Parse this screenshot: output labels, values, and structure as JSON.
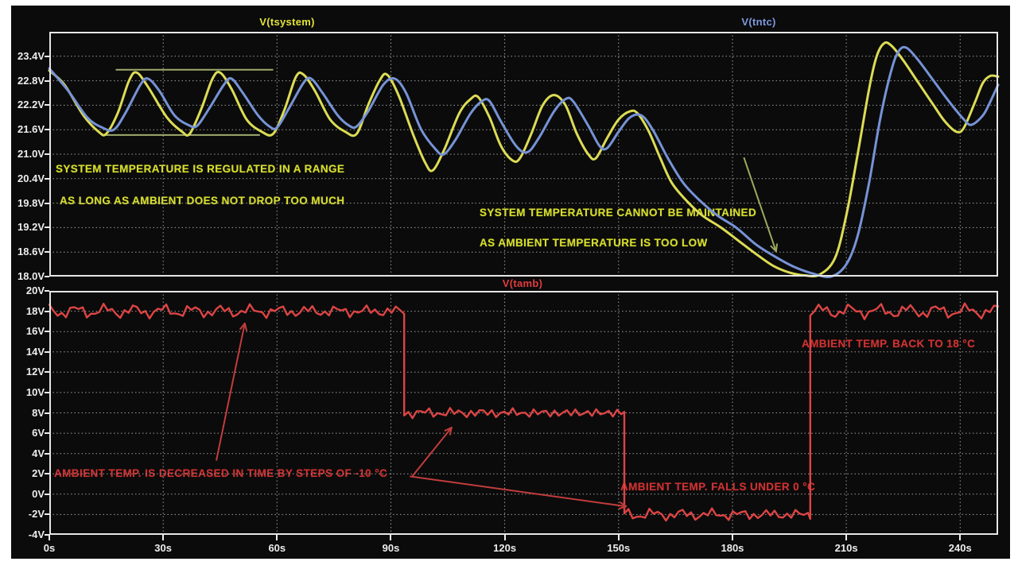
{
  "figure": {
    "background": "#0b0b0b",
    "grid_color": "#9c9c9c",
    "border_color": "#e6e6e6",
    "axis_label_color": "#ededed"
  },
  "chart_data": [
    {
      "id": "top",
      "type": "line",
      "xlim": [
        0,
        250
      ],
      "ylim": [
        18.0,
        24.0
      ],
      "grid_x": [
        30,
        60,
        90,
        120,
        150,
        180,
        210,
        240
      ],
      "grid_y": [
        23.4,
        22.8,
        22.2,
        21.6,
        21.0,
        20.4,
        19.8,
        19.2,
        18.6
      ],
      "yticks": [
        23.4,
        22.8,
        22.2,
        21.6,
        21.0,
        20.4,
        19.8,
        19.2,
        18.6,
        18.0
      ],
      "ytick_labels": [
        "23.4V",
        "22.8V",
        "22.2V",
        "21.6V",
        "21.0V",
        "20.4V",
        "19.8V",
        "19.2V",
        "18.6V",
        "18.0V"
      ],
      "x_axis": false,
      "legend": [
        {
          "label": "V(tsystem)",
          "color": "#e3e337"
        },
        {
          "label": "V(tntc)",
          "color": "#7d9ae0"
        }
      ],
      "annotations": [
        {
          "text": "SYSTEM TEMPERATURE IS REGULATED IN A RANGE"
        },
        {
          "text": "AS LONG AS AMBIENT DOES NOT DROP TOO MUCH"
        },
        {
          "text": "SYSTEM TEMPERATURE CANNOT BE MAINTAINED"
        },
        {
          "text": "AS AMBIENT TEMPERATURE IS TOO LOW"
        }
      ],
      "ref_lines": [
        {
          "t1": 17.5,
          "t2": 59.0,
          "v": 23.07,
          "color": "#b9c87d"
        },
        {
          "t1": 14.7,
          "t2": 55.5,
          "v": 21.47,
          "color": "#b9c87d"
        }
      ],
      "arrows": [
        {
          "from": [
            183.0,
            20.92
          ],
          "to": [
            191.5,
            18.62
          ],
          "color": "#9aaa5e"
        }
      ],
      "series": [
        {
          "name": "V(tsystem)",
          "color": "#dcdc55",
          "width": 3,
          "smooth": true,
          "points": [
            [
              0,
              23.05
            ],
            [
              4,
              22.7
            ],
            [
              9,
              21.95
            ],
            [
              13,
              21.55
            ],
            [
              15,
              21.5
            ],
            [
              18,
              22.0
            ],
            [
              21,
              22.8
            ],
            [
              23,
              23.0
            ],
            [
              26,
              22.65
            ],
            [
              31,
              21.9
            ],
            [
              35,
              21.55
            ],
            [
              37,
              21.5
            ],
            [
              40,
              22.1
            ],
            [
              43,
              22.85
            ],
            [
              45,
              23.0
            ],
            [
              48,
              22.6
            ],
            [
              52,
              21.85
            ],
            [
              56,
              21.55
            ],
            [
              59,
              21.5
            ],
            [
              62,
              22.1
            ],
            [
              65,
              22.9
            ],
            [
              67,
              22.95
            ],
            [
              70,
              22.55
            ],
            [
              74,
              21.85
            ],
            [
              78,
              21.55
            ],
            [
              81,
              21.5
            ],
            [
              84,
              22.2
            ],
            [
              87,
              22.8
            ],
            [
              89,
              22.95
            ],
            [
              92,
              22.45
            ],
            [
              96,
              21.45
            ],
            [
              99,
              20.8
            ],
            [
              101,
              20.6
            ],
            [
              104,
              21.1
            ],
            [
              108,
              22.0
            ],
            [
              111,
              22.35
            ],
            [
              113,
              22.4
            ],
            [
              116,
              21.9
            ],
            [
              119,
              21.2
            ],
            [
              122,
              20.85
            ],
            [
              124,
              20.9
            ],
            [
              127,
              21.5
            ],
            [
              130,
              22.2
            ],
            [
              133,
              22.45
            ],
            [
              136,
              22.2
            ],
            [
              139,
              21.5
            ],
            [
              142,
              21.0
            ],
            [
              144,
              20.9
            ],
            [
              147,
              21.4
            ],
            [
              150,
              21.85
            ],
            [
              153,
              22.05
            ],
            [
              155,
              22.0
            ],
            [
              158,
              21.55
            ],
            [
              161,
              20.9
            ],
            [
              164,
              20.3
            ],
            [
              168,
              19.85
            ],
            [
              172,
              19.5
            ],
            [
              177,
              19.2
            ],
            [
              182,
              18.85
            ],
            [
              187,
              18.5
            ],
            [
              191,
              18.25
            ],
            [
              195,
              18.1
            ],
            [
              199,
              18.03
            ],
            [
              203,
              18.05
            ],
            [
              207,
              18.45
            ],
            [
              210,
              19.5
            ],
            [
              213,
              21.0
            ],
            [
              216,
              22.6
            ],
            [
              218,
              23.4
            ],
            [
              220,
              23.72
            ],
            [
              222,
              23.65
            ],
            [
              225,
              23.3
            ],
            [
              229,
              22.75
            ],
            [
              233,
              22.2
            ],
            [
              236,
              21.8
            ],
            [
              239,
              21.55
            ],
            [
              241,
              21.65
            ],
            [
              244,
              22.3
            ],
            [
              246,
              22.75
            ],
            [
              248,
              22.92
            ],
            [
              250,
              22.9
            ]
          ]
        },
        {
          "name": "V(tntc)",
          "color": "#7693d6",
          "width": 3,
          "smooth": true,
          "points": [
            [
              0,
              23.1
            ],
            [
              5,
              22.55
            ],
            [
              10,
              21.9
            ],
            [
              14,
              21.65
            ],
            [
              17,
              21.6
            ],
            [
              20,
              22.0
            ],
            [
              24,
              22.7
            ],
            [
              26,
              22.85
            ],
            [
              29,
              22.55
            ],
            [
              33,
              21.95
            ],
            [
              37,
              21.7
            ],
            [
              39,
              21.7
            ],
            [
              42,
              22.1
            ],
            [
              46,
              22.7
            ],
            [
              48,
              22.85
            ],
            [
              51,
              22.5
            ],
            [
              55,
              21.95
            ],
            [
              58,
              21.68
            ],
            [
              60,
              21.65
            ],
            [
              63,
              22.1
            ],
            [
              67,
              22.75
            ],
            [
              69,
              22.85
            ],
            [
              72,
              22.5
            ],
            [
              76,
              21.95
            ],
            [
              79,
              21.7
            ],
            [
              81,
              21.68
            ],
            [
              84,
              22.05
            ],
            [
              88,
              22.7
            ],
            [
              91,
              22.85
            ],
            [
              94,
              22.5
            ],
            [
              98,
              21.6
            ],
            [
              102,
              21.1
            ],
            [
              104,
              21.0
            ],
            [
              107,
              21.35
            ],
            [
              111,
              22.0
            ],
            [
              114,
              22.3
            ],
            [
              116,
              22.3
            ],
            [
              119,
              21.8
            ],
            [
              123,
              21.2
            ],
            [
              126,
              21.05
            ],
            [
              129,
              21.4
            ],
            [
              133,
              22.05
            ],
            [
              136,
              22.35
            ],
            [
              138,
              22.3
            ],
            [
              142,
              21.7
            ],
            [
              145,
              21.2
            ],
            [
              147,
              21.15
            ],
            [
              150,
              21.55
            ],
            [
              153,
              21.9
            ],
            [
              156,
              21.95
            ],
            [
              159,
              21.6
            ],
            [
              163,
              20.9
            ],
            [
              167,
              20.3
            ],
            [
              171,
              19.9
            ],
            [
              176,
              19.5
            ],
            [
              181,
              19.2
            ],
            [
              186,
              18.8
            ],
            [
              191,
              18.5
            ],
            [
              196,
              18.25
            ],
            [
              201,
              18.08
            ],
            [
              206,
              18.0
            ],
            [
              210,
              18.3
            ],
            [
              213,
              19.0
            ],
            [
              216,
              20.3
            ],
            [
              219,
              21.9
            ],
            [
              222,
              23.1
            ],
            [
              224,
              23.55
            ],
            [
              226,
              23.6
            ],
            [
              229,
              23.3
            ],
            [
              233,
              22.8
            ],
            [
              237,
              22.3
            ],
            [
              241,
              21.85
            ],
            [
              243,
              21.72
            ],
            [
              246,
              21.95
            ],
            [
              248,
              22.3
            ],
            [
              250,
              22.7
            ]
          ]
        }
      ]
    },
    {
      "id": "bottom",
      "type": "line",
      "xlim": [
        0,
        250
      ],
      "ylim": [
        -4,
        20
      ],
      "grid_x": [
        30,
        60,
        90,
        120,
        150,
        180,
        210,
        240
      ],
      "grid_y": [
        18,
        16,
        14,
        12,
        10,
        8,
        6,
        4,
        2,
        0,
        -2
      ],
      "yticks": [
        20,
        18,
        16,
        14,
        12,
        10,
        8,
        6,
        4,
        2,
        0,
        -2,
        -4
      ],
      "ytick_labels": [
        "20V",
        "18V",
        "16V",
        "14V",
        "12V",
        "10V",
        "8V",
        "6V",
        "4V",
        "2V",
        "0V",
        "-2V",
        "-4V"
      ],
      "x_axis": true,
      "xticks": [
        0,
        30,
        60,
        90,
        120,
        150,
        180,
        210,
        240
      ],
      "xtick_labels": [
        "0s",
        "30s",
        "60s",
        "90s",
        "120s",
        "150s",
        "180s",
        "210s",
        "240s"
      ],
      "legend": [
        {
          "label": "V(tamb)",
          "color": "#e23c3c"
        }
      ],
      "annotations": [
        {
          "text": "AMBIENT TEMP. IS DECREASED IN TIME BY STEPS OF -10 °C"
        },
        {
          "text": "AMBIENT TEMP. FALLS UNDER 0 °C"
        },
        {
          "text": "AMBIENT TEMP. BACK TO 18 °C"
        }
      ],
      "arrows": [
        {
          "from": [
            44.0,
            3.3
          ],
          "to": [
            51.5,
            16.8
          ],
          "color": "#c23c3c"
        },
        {
          "from": [
            95.5,
            1.7
          ],
          "to": [
            106.0,
            6.55
          ],
          "color": "#c23c3c"
        },
        {
          "from": [
            95.0,
            1.75
          ],
          "to": [
            152.0,
            -1.2
          ],
          "color": "#c23c3c"
        }
      ],
      "series": [
        {
          "name": "V(tamb)",
          "color": "#dd4444",
          "width": 2.4,
          "smooth": false,
          "noise_amplitude": 0.8,
          "step_segments": [
            {
              "t0": 0,
              "t1": 93.5,
              "level": 18
            },
            {
              "t0": 93.5,
              "t1": 151.5,
              "level": 8
            },
            {
              "t0": 151.5,
              "t1": 200.5,
              "level": -2
            },
            {
              "t0": 200.5,
              "t1": 250,
              "level": 18
            }
          ]
        }
      ]
    }
  ]
}
